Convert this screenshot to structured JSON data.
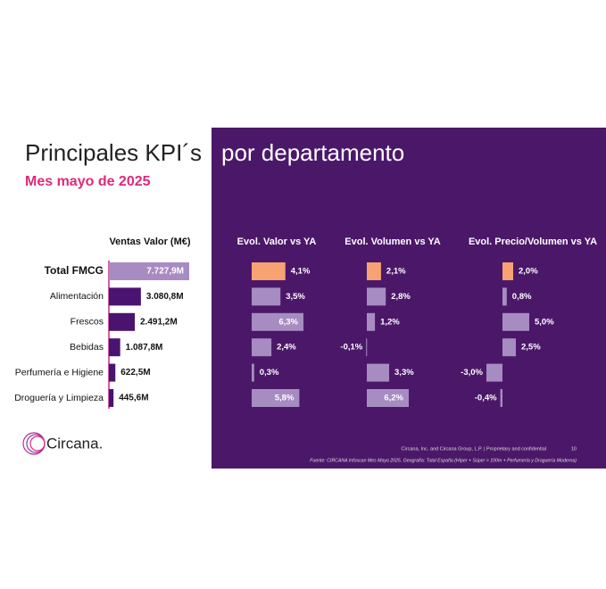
{
  "title_left": "Principales KPI´s",
  "title_right": "por departamento",
  "subtitle": "Mes mayo de 2025",
  "logo": "Circana.",
  "footer": {
    "copyright": "Circana, Inc. and Circana Group, L.P.  |  Proprietary and confidential",
    "page": "10",
    "source": "Fuente: CIRCANA Infoscan Mes Mayo 2025. Geografía: Total España (Híper + Súper > 100m + Perfumería y Droguería Moderna)"
  },
  "chart_data": [
    {
      "type": "bar",
      "orientation": "horizontal",
      "title": "Ventas Valor (M€)",
      "categories": [
        "Total FMCG",
        "Alimentación",
        "Frescos",
        "Bebidas",
        "Perfumería e Higiene",
        "Droguería y Limpieza"
      ],
      "values": [
        7727.9,
        3080.8,
        2491.2,
        1087.8,
        622.5,
        445.6
      ],
      "value_labels": [
        "7.727,9M",
        "3.080,8M",
        "2.491,2M",
        "1.087,8M",
        "622,5M",
        "445,6M"
      ],
      "colors": [
        "#a98bc4",
        "#4a1370",
        "#4a1370",
        "#4a1370",
        "#4a1370",
        "#4a1370"
      ]
    },
    {
      "type": "bar",
      "orientation": "horizontal",
      "title": "Evol. Valor vs YA",
      "values": [
        4.1,
        3.5,
        6.3,
        2.4,
        0.3,
        5.8
      ],
      "value_labels": [
        "4,1%",
        "3,5%",
        "6,3%",
        "2,4%",
        "0,3%",
        "5,8%"
      ],
      "colors": [
        "#f7a272",
        "#a68cc1",
        "#a68cc1",
        "#a68cc1",
        "#a68cc1",
        "#a68cc1"
      ]
    },
    {
      "type": "bar",
      "orientation": "horizontal",
      "title": "Evol. Volumen vs YA",
      "values": [
        2.1,
        2.8,
        1.2,
        -0.1,
        3.3,
        6.2
      ],
      "value_labels": [
        "2,1%",
        "2,8%",
        "1,2%",
        "-0,1%",
        "3,3%",
        "6,2%"
      ],
      "colors": [
        "#f7a272",
        "#a68cc1",
        "#a68cc1",
        "#a68cc1",
        "#a68cc1",
        "#a68cc1"
      ]
    },
    {
      "type": "bar",
      "orientation": "horizontal",
      "title": "Evol. Precio/Volumen vs YA",
      "values": [
        2.0,
        0.8,
        5.0,
        2.5,
        -3.0,
        -0.4
      ],
      "value_labels": [
        "2,0%",
        "0,8%",
        "5,0%",
        "2,5%",
        "-3,0%",
        "-0,4%"
      ],
      "colors": [
        "#f7a272",
        "#a68cc1",
        "#a68cc1",
        "#a68cc1",
        "#a68cc1",
        "#a68cc1"
      ]
    }
  ]
}
